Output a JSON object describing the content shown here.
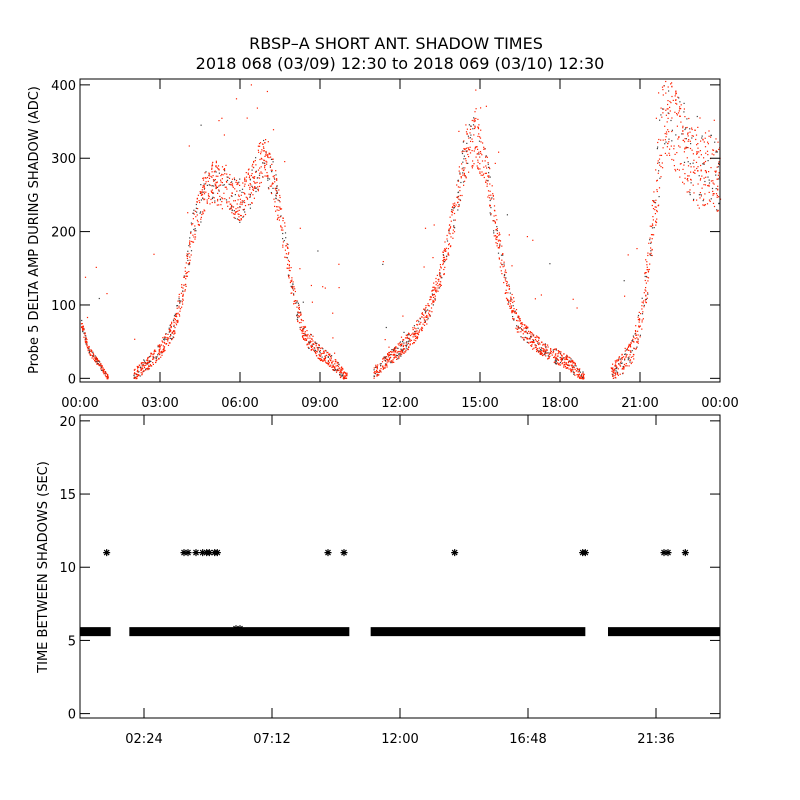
{
  "title": "RBSP–A SHORT ANT. SHADOW TIMES",
  "subtitle": "2018 068 (03/09) 12:30 to 2018 069 (03/10) 12:30",
  "colors": {
    "primary_dots": "#ff2000",
    "secondary_dots": "#404040",
    "axes": "#000000"
  },
  "chart_data": [
    {
      "type": "scatter",
      "ylabel": "Probe 5 DELTA AMP DURING SHADOW (ADC)",
      "xlabel": "",
      "xlim": [
        0,
        24
      ],
      "ylim": [
        -5,
        408
      ],
      "xticks": [
        0,
        3,
        6,
        9,
        12,
        15,
        18,
        21,
        24
      ],
      "xtick_labels": [
        "00:00",
        "03:00",
        "06:00",
        "09:00",
        "12:00",
        "15:00",
        "18:00",
        "21:00",
        "00:00"
      ],
      "yticks": [
        0,
        100,
        200,
        300,
        400
      ],
      "ytick_labels": [
        "0",
        "100",
        "200",
        "300",
        "400"
      ],
      "segments": [
        {
          "trend": [
            [
              0.0,
              80
            ],
            [
              0.3,
              40
            ],
            [
              0.7,
              20
            ],
            [
              1.05,
              0
            ]
          ],
          "spread": 12
        },
        {
          "trend": [
            [
              2.0,
              5
            ],
            [
              2.5,
              20
            ],
            [
              3.0,
              40
            ],
            [
              3.5,
              70
            ],
            [
              3.9,
              130
            ],
            [
              4.2,
              200
            ],
            [
              4.6,
              250
            ],
            [
              5.0,
              270
            ],
            [
              5.5,
              255
            ],
            [
              6.0,
              240
            ],
            [
              6.5,
              270
            ],
            [
              6.9,
              310
            ],
            [
              7.3,
              260
            ],
            [
              7.7,
              180
            ],
            [
              8.0,
              110
            ],
            [
              8.4,
              60
            ],
            [
              9.0,
              35
            ],
            [
              9.5,
              20
            ],
            [
              10.0,
              0
            ]
          ],
          "spread": 25
        },
        {
          "trend": [
            [
              11.0,
              8
            ],
            [
              11.5,
              25
            ],
            [
              12.0,
              40
            ],
            [
              12.5,
              60
            ],
            [
              13.0,
              90
            ],
            [
              13.5,
              140
            ],
            [
              14.0,
              220
            ],
            [
              14.4,
              300
            ],
            [
              14.8,
              330
            ],
            [
              15.2,
              290
            ],
            [
              15.6,
              200
            ],
            [
              16.0,
              120
            ],
            [
              16.4,
              75
            ],
            [
              17.0,
              50
            ],
            [
              17.6,
              35
            ],
            [
              18.3,
              22
            ],
            [
              18.9,
              0
            ]
          ],
          "spread": 25
        },
        {
          "trend": [
            [
              19.9,
              8
            ],
            [
              20.3,
              20
            ],
            [
              20.7,
              40
            ],
            [
              21.0,
              80
            ],
            [
              21.3,
              150
            ],
            [
              21.6,
              260
            ],
            [
              21.9,
              370
            ],
            [
              22.3,
              340
            ],
            [
              22.7,
              310
            ],
            [
              23.2,
              280
            ],
            [
              23.6,
              290
            ],
            [
              24.0,
              270
            ]
          ],
          "spread": 40
        }
      ]
    },
    {
      "type": "scatter",
      "ylabel": "TIME BETWEEN SHADOWS (SEC)",
      "xlabel": "",
      "xlim": [
        0,
        24
      ],
      "ylim": [
        -0.3,
        20.4
      ],
      "xticks": [
        2.4,
        7.2,
        12.0,
        16.8,
        21.6
      ],
      "xtick_labels": [
        "02:24",
        "07:12",
        "12:00",
        "16:48",
        "21:36"
      ],
      "yticks": [
        0,
        5,
        10,
        15,
        20
      ],
      "ytick_labels": [
        "0",
        "5",
        "10",
        "15",
        "20"
      ],
      "band_value": 5.6,
      "band_ranges": [
        [
          0.0,
          1.15
        ],
        [
          1.85,
          10.1
        ],
        [
          10.9,
          18.95
        ],
        [
          19.8,
          24.0
        ]
      ],
      "outliers": [
        [
          1.0,
          11
        ],
        [
          3.9,
          11
        ],
        [
          4.05,
          11
        ],
        [
          4.35,
          11
        ],
        [
          4.6,
          11
        ],
        [
          4.75,
          11
        ],
        [
          4.85,
          11
        ],
        [
          5.05,
          11
        ],
        [
          5.15,
          11
        ],
        [
          9.3,
          11
        ],
        [
          9.9,
          11
        ],
        [
          14.05,
          11
        ],
        [
          18.85,
          11
        ],
        [
          18.95,
          11
        ],
        [
          21.9,
          11
        ],
        [
          22.05,
          11
        ],
        [
          22.7,
          11
        ],
        [
          5.85,
          5.8
        ],
        [
          6.0,
          5.8
        ]
      ]
    }
  ]
}
